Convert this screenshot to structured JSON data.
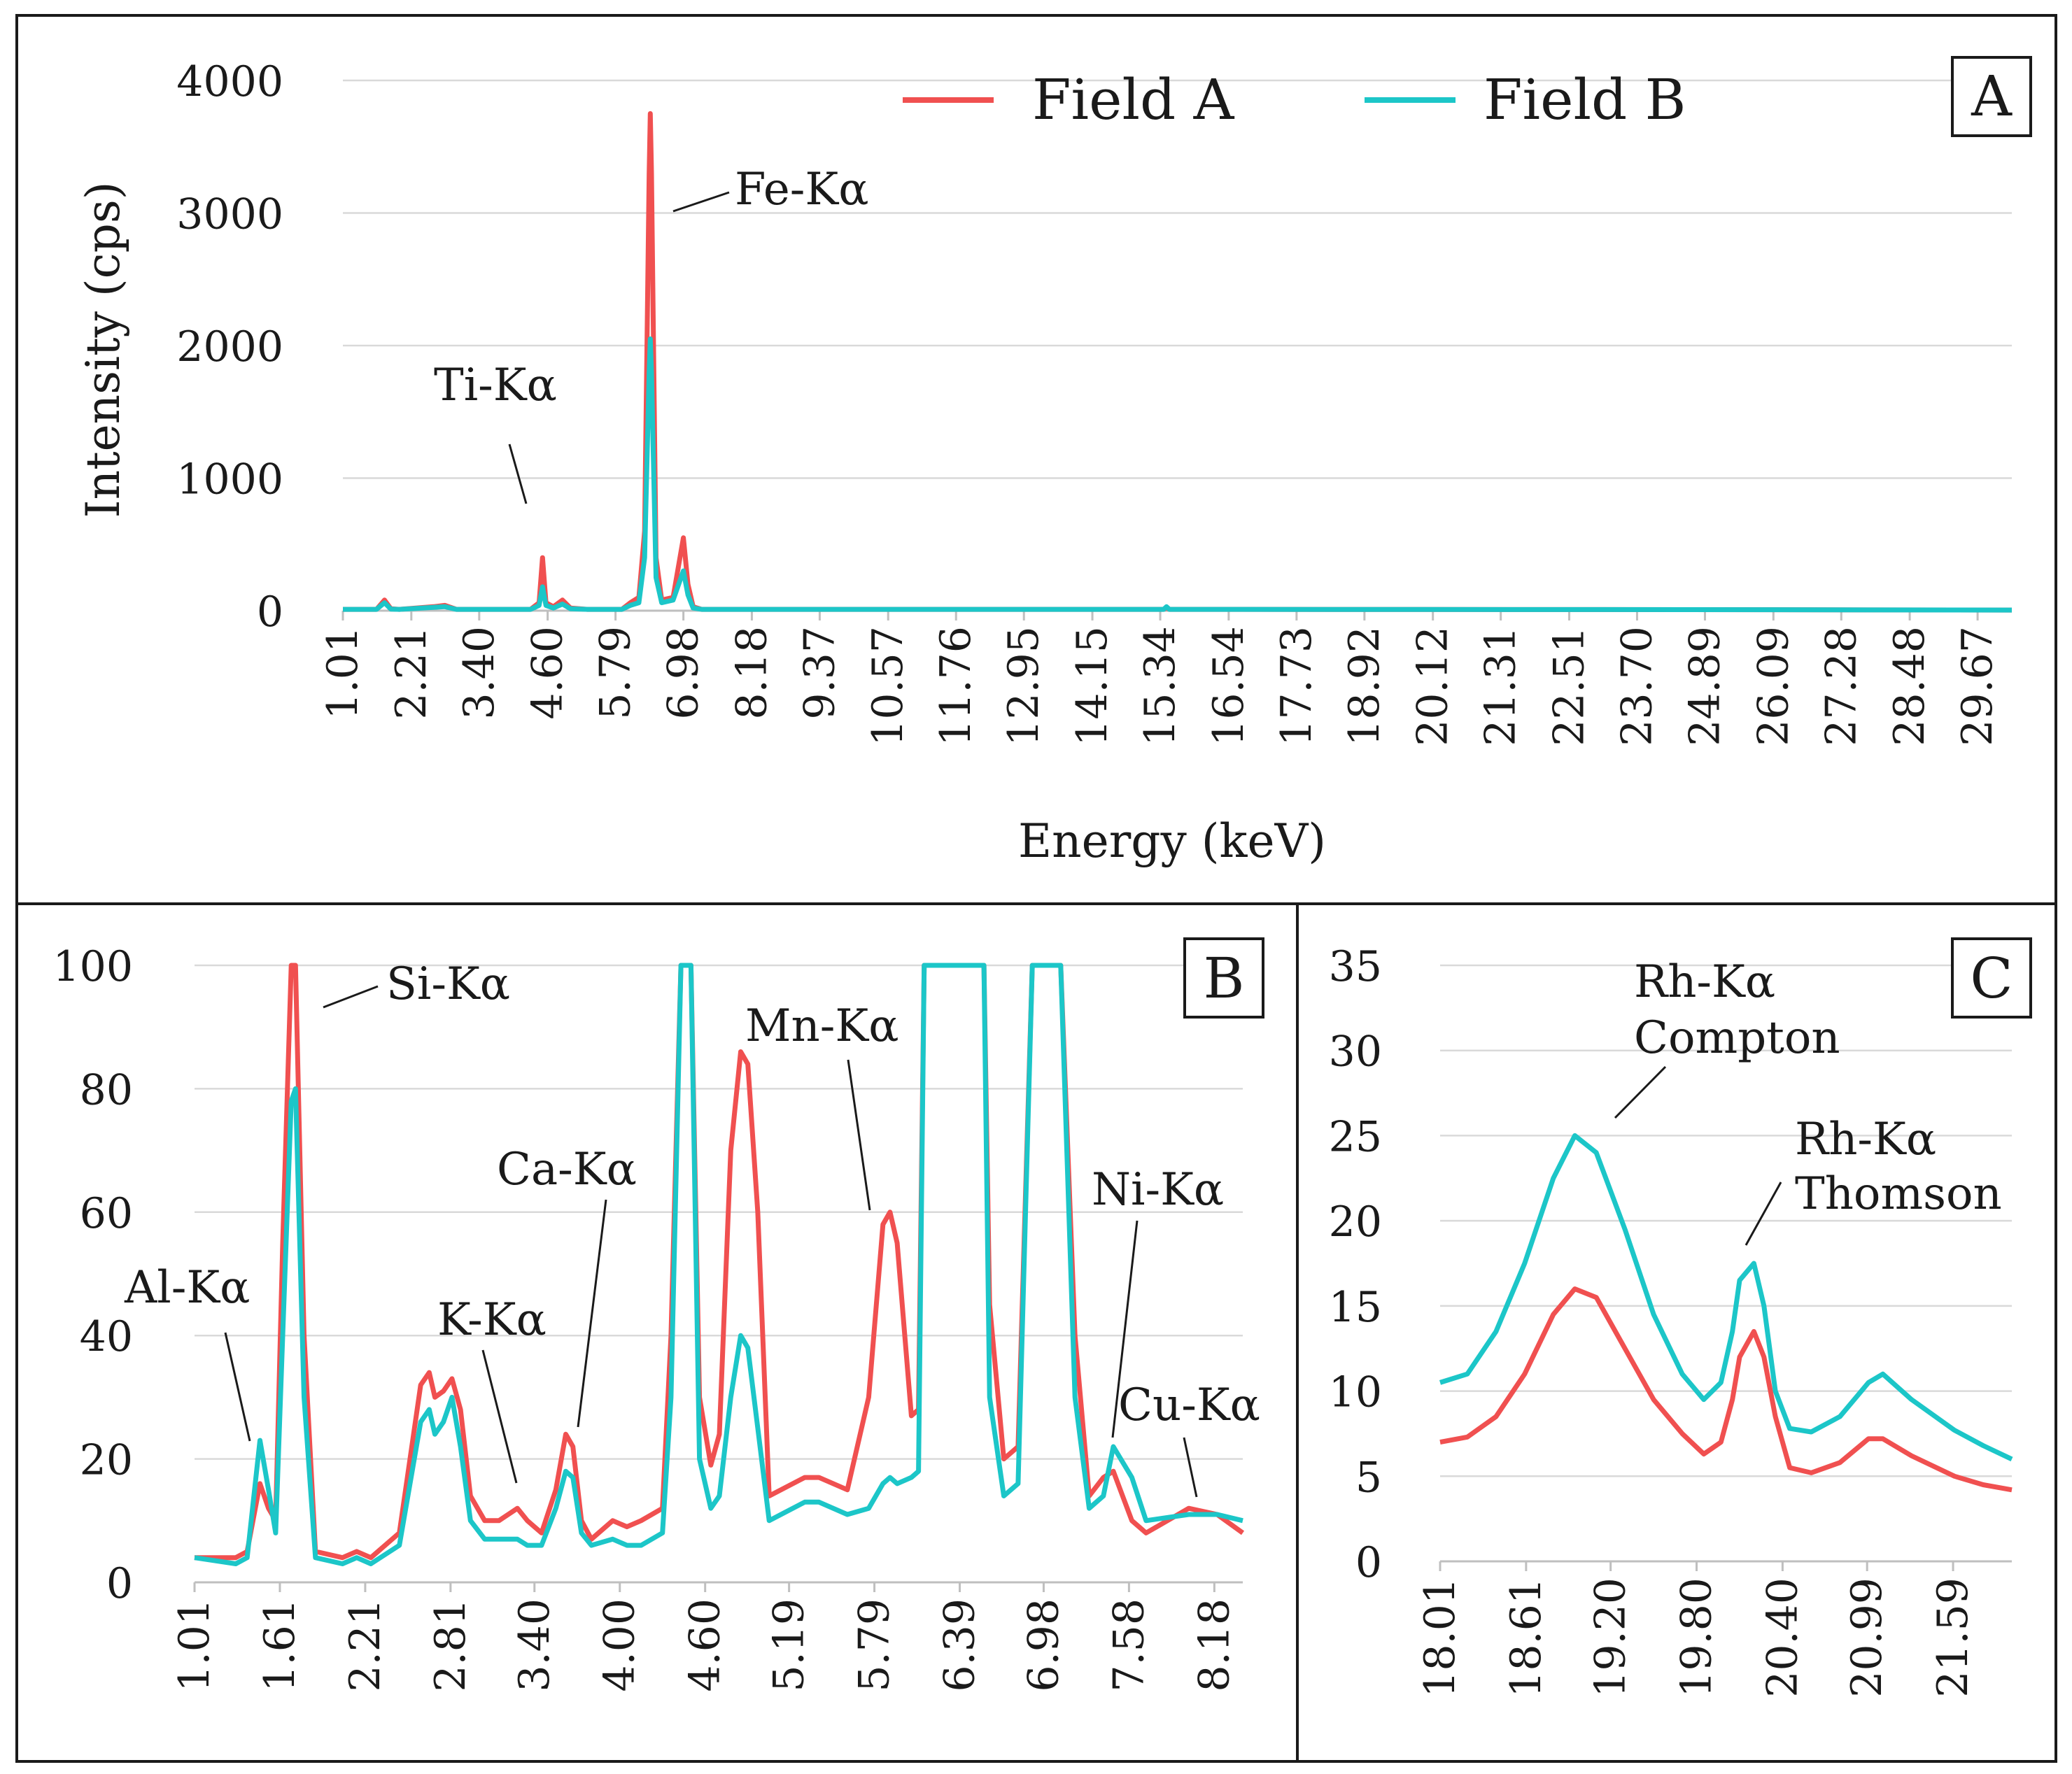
{
  "legend": {
    "series_a_label": "Field A",
    "series_b_label": "Field B",
    "series_a_color": "#f05050",
    "series_b_color": "#1cc6c8"
  },
  "chart_data": [
    {
      "panel": "A",
      "type": "line",
      "title": "",
      "xlabel": "Energy (keV)",
      "ylabel": "Intensity (cps)",
      "xlim": [
        1.01,
        30.27
      ],
      "ylim": [
        0,
        4000
      ],
      "yticks": [
        0,
        1000,
        2000,
        3000,
        4000
      ],
      "xticks": [
        "1.01",
        "2.21",
        "3.40",
        "4.60",
        "5.79",
        "6.98",
        "8.18",
        "9.37",
        "10.57",
        "11.76",
        "12.95",
        "14.15",
        "15.34",
        "16.54",
        "17.73",
        "18.92",
        "20.12",
        "21.31",
        "22.51",
        "23.70",
        "24.89",
        "26.09",
        "27.28",
        "28.48",
        "29.67"
      ],
      "grid": true,
      "legend_position": "top",
      "annotations": [
        {
          "label": "Ti-Kα",
          "x": 4.51
        },
        {
          "label": "Fe-Kα",
          "x": 6.4
        }
      ],
      "series": [
        {
          "name": "Field A",
          "x": [
            1.01,
            1.6,
            1.74,
            1.85,
            2.0,
            2.6,
            2.8,
            3.0,
            4.3,
            4.45,
            4.51,
            4.57,
            4.7,
            4.86,
            5.0,
            5.3,
            5.9,
            6.05,
            6.2,
            6.3,
            6.38,
            6.4,
            6.42,
            6.5,
            6.6,
            6.8,
            6.98,
            7.06,
            7.15,
            7.3,
            8.0,
            15.4,
            15.45,
            15.5,
            24.5,
            30.27
          ],
          "y": [
            10,
            10,
            80,
            15,
            10,
            30,
            40,
            10,
            10,
            60,
            400,
            60,
            30,
            80,
            20,
            10,
            10,
            60,
            100,
            600,
            3300,
            3750,
            3300,
            400,
            80,
            100,
            550,
            200,
            30,
            10,
            10,
            10,
            20,
            10,
            8,
            5
          ]
        },
        {
          "name": "Field B",
          "x": [
            1.01,
            1.6,
            1.74,
            1.85,
            2.0,
            2.6,
            2.8,
            3.0,
            4.3,
            4.45,
            4.51,
            4.57,
            4.7,
            4.86,
            5.0,
            5.3,
            5.9,
            6.05,
            6.2,
            6.3,
            6.38,
            6.4,
            6.42,
            6.5,
            6.6,
            6.8,
            6.98,
            7.06,
            7.15,
            7.3,
            8.0,
            15.4,
            15.45,
            15.5,
            24.5,
            30.27
          ],
          "y": [
            10,
            10,
            60,
            12,
            10,
            25,
            30,
            10,
            10,
            40,
            180,
            40,
            20,
            50,
            15,
            10,
            10,
            40,
            60,
            400,
            1800,
            2050,
            1800,
            250,
            60,
            80,
            300,
            120,
            20,
            10,
            10,
            10,
            30,
            10,
            8,
            5
          ]
        }
      ]
    },
    {
      "panel": "B",
      "type": "line",
      "title": "",
      "xlabel": "",
      "ylabel": "",
      "xlim": [
        1.01,
        8.38
      ],
      "ylim": [
        0,
        100
      ],
      "yticks": [
        0,
        20,
        40,
        60,
        80,
        100
      ],
      "xticks": [
        "1.01",
        "1.61",
        "2.21",
        "2.81",
        "3.40",
        "4.00",
        "4.60",
        "5.19",
        "5.79",
        "6.39",
        "6.98",
        "7.58",
        "8.18"
      ],
      "grid": true,
      "annotations": [
        {
          "label": "Al-Kα",
          "x": 1.48
        },
        {
          "label": "Si-Kα",
          "x": 1.74
        },
        {
          "label": "K-Kα",
          "x": 3.31
        },
        {
          "label": "Ca-Kα",
          "x": 3.69
        },
        {
          "label": "Mn-Kα",
          "x": 5.9
        },
        {
          "label": "Ni-Kα",
          "x": 7.47
        },
        {
          "label": "Cu-Kα",
          "x": 8.04
        }
      ],
      "series": [
        {
          "name": "Field A",
          "x": [
            1.01,
            1.3,
            1.38,
            1.47,
            1.53,
            1.58,
            1.63,
            1.69,
            1.72,
            1.78,
            1.86,
            2.05,
            2.15,
            2.25,
            2.45,
            2.6,
            2.66,
            2.7,
            2.76,
            2.82,
            2.88,
            2.95,
            3.05,
            3.15,
            3.28,
            3.35,
            3.45,
            3.55,
            3.62,
            3.67,
            3.73,
            3.8,
            3.95,
            4.05,
            4.15,
            4.3,
            4.36,
            4.43,
            4.5,
            4.56,
            4.64,
            4.7,
            4.78,
            4.85,
            4.9,
            4.97,
            5.05,
            5.3,
            5.4,
            5.6,
            5.75,
            5.85,
            5.9,
            5.95,
            6.05,
            6.1,
            6.14,
            6.2,
            6.35,
            6.56,
            6.6,
            6.7,
            6.8,
            6.9,
            6.98,
            7.1,
            7.2,
            7.3,
            7.4,
            7.47,
            7.6,
            7.7,
            8.0,
            8.2,
            8.38
          ],
          "y": [
            4,
            4,
            5,
            16,
            12,
            10,
            55,
            100,
            100,
            40,
            5,
            4,
            5,
            4,
            8,
            32,
            34,
            30,
            31,
            33,
            28,
            14,
            10,
            10,
            12,
            10,
            8,
            15,
            24,
            22,
            10,
            7,
            10,
            9,
            10,
            12,
            40,
            100,
            100,
            30,
            19,
            24,
            70,
            86,
            84,
            60,
            14,
            17,
            17,
            15,
            30,
            58,
            60,
            55,
            27,
            28,
            100,
            100,
            100,
            100,
            45,
            20,
            22,
            100,
            100,
            100,
            40,
            14,
            17,
            18,
            10,
            8,
            12,
            11,
            8
          ]
        },
        {
          "name": "Field B",
          "x": [
            1.01,
            1.3,
            1.38,
            1.47,
            1.53,
            1.58,
            1.63,
            1.69,
            1.72,
            1.78,
            1.86,
            2.05,
            2.15,
            2.25,
            2.45,
            2.6,
            2.66,
            2.7,
            2.76,
            2.82,
            2.88,
            2.95,
            3.05,
            3.15,
            3.28,
            3.35,
            3.45,
            3.55,
            3.62,
            3.67,
            3.73,
            3.8,
            3.95,
            4.05,
            4.15,
            4.3,
            4.36,
            4.43,
            4.5,
            4.56,
            4.64,
            4.7,
            4.78,
            4.85,
            4.9,
            4.97,
            5.05,
            5.3,
            5.4,
            5.6,
            5.75,
            5.85,
            5.9,
            5.95,
            6.05,
            6.1,
            6.14,
            6.2,
            6.35,
            6.56,
            6.6,
            6.7,
            6.8,
            6.9,
            6.98,
            7.1,
            7.2,
            7.3,
            7.4,
            7.47,
            7.6,
            7.7,
            8.0,
            8.2,
            8.38
          ],
          "y": [
            4,
            3,
            4,
            23,
            15,
            8,
            40,
            78,
            80,
            30,
            4,
            3,
            4,
            3,
            6,
            26,
            28,
            24,
            26,
            30,
            22,
            10,
            7,
            7,
            7,
            6,
            6,
            12,
            18,
            17,
            8,
            6,
            7,
            6,
            6,
            8,
            30,
            100,
            100,
            20,
            12,
            14,
            30,
            40,
            38,
            25,
            10,
            13,
            13,
            11,
            12,
            16,
            17,
            16,
            17,
            18,
            100,
            100,
            100,
            100,
            30,
            14,
            16,
            100,
            100,
            100,
            30,
            12,
            14,
            22,
            17,
            10,
            11,
            11,
            10
          ]
        }
      ]
    },
    {
      "panel": "C",
      "type": "line",
      "title": "",
      "xlabel": "",
      "ylabel": "",
      "xlim": [
        18.01,
        22.0
      ],
      "ylim": [
        0,
        35
      ],
      "yticks": [
        0,
        5,
        10,
        15,
        20,
        25,
        30,
        35
      ],
      "xticks": [
        "18.01",
        "18.61",
        "19.20",
        "19.80",
        "20.40",
        "20.99",
        "21.59"
      ],
      "grid": true,
      "annotations": [
        {
          "label": "Rh-Kα",
          "label2": "Compton",
          "x": 18.95
        },
        {
          "label": "Rh-Kα",
          "label2": "Thomson",
          "x": 20.2
        }
      ],
      "series": [
        {
          "name": "Field A",
          "x": [
            18.01,
            18.2,
            18.4,
            18.6,
            18.8,
            18.95,
            19.1,
            19.3,
            19.5,
            19.7,
            19.85,
            19.97,
            20.05,
            20.1,
            20.2,
            20.27,
            20.35,
            20.45,
            20.6,
            20.8,
            21.0,
            21.1,
            21.3,
            21.6,
            21.8,
            22.0
          ],
          "y": [
            7.0,
            7.3,
            8.5,
            11.0,
            14.5,
            16.0,
            15.5,
            12.5,
            9.5,
            7.5,
            6.3,
            7.0,
            9.5,
            12.0,
            13.5,
            12.0,
            8.5,
            5.5,
            5.2,
            5.8,
            7.2,
            7.2,
            6.2,
            5.0,
            4.5,
            4.2
          ]
        },
        {
          "name": "Field B",
          "x": [
            18.01,
            18.2,
            18.4,
            18.6,
            18.8,
            18.95,
            19.1,
            19.3,
            19.5,
            19.7,
            19.85,
            19.97,
            20.05,
            20.1,
            20.2,
            20.27,
            20.35,
            20.45,
            20.6,
            20.8,
            21.0,
            21.1,
            21.3,
            21.6,
            21.8,
            22.0
          ],
          "y": [
            10.5,
            11.0,
            13.5,
            17.5,
            22.5,
            25.0,
            24.0,
            19.5,
            14.5,
            11.0,
            9.5,
            10.5,
            13.5,
            16.5,
            17.5,
            15.0,
            10.0,
            7.8,
            7.6,
            8.5,
            10.5,
            11.0,
            9.5,
            7.7,
            6.8,
            6.0
          ]
        }
      ]
    }
  ]
}
